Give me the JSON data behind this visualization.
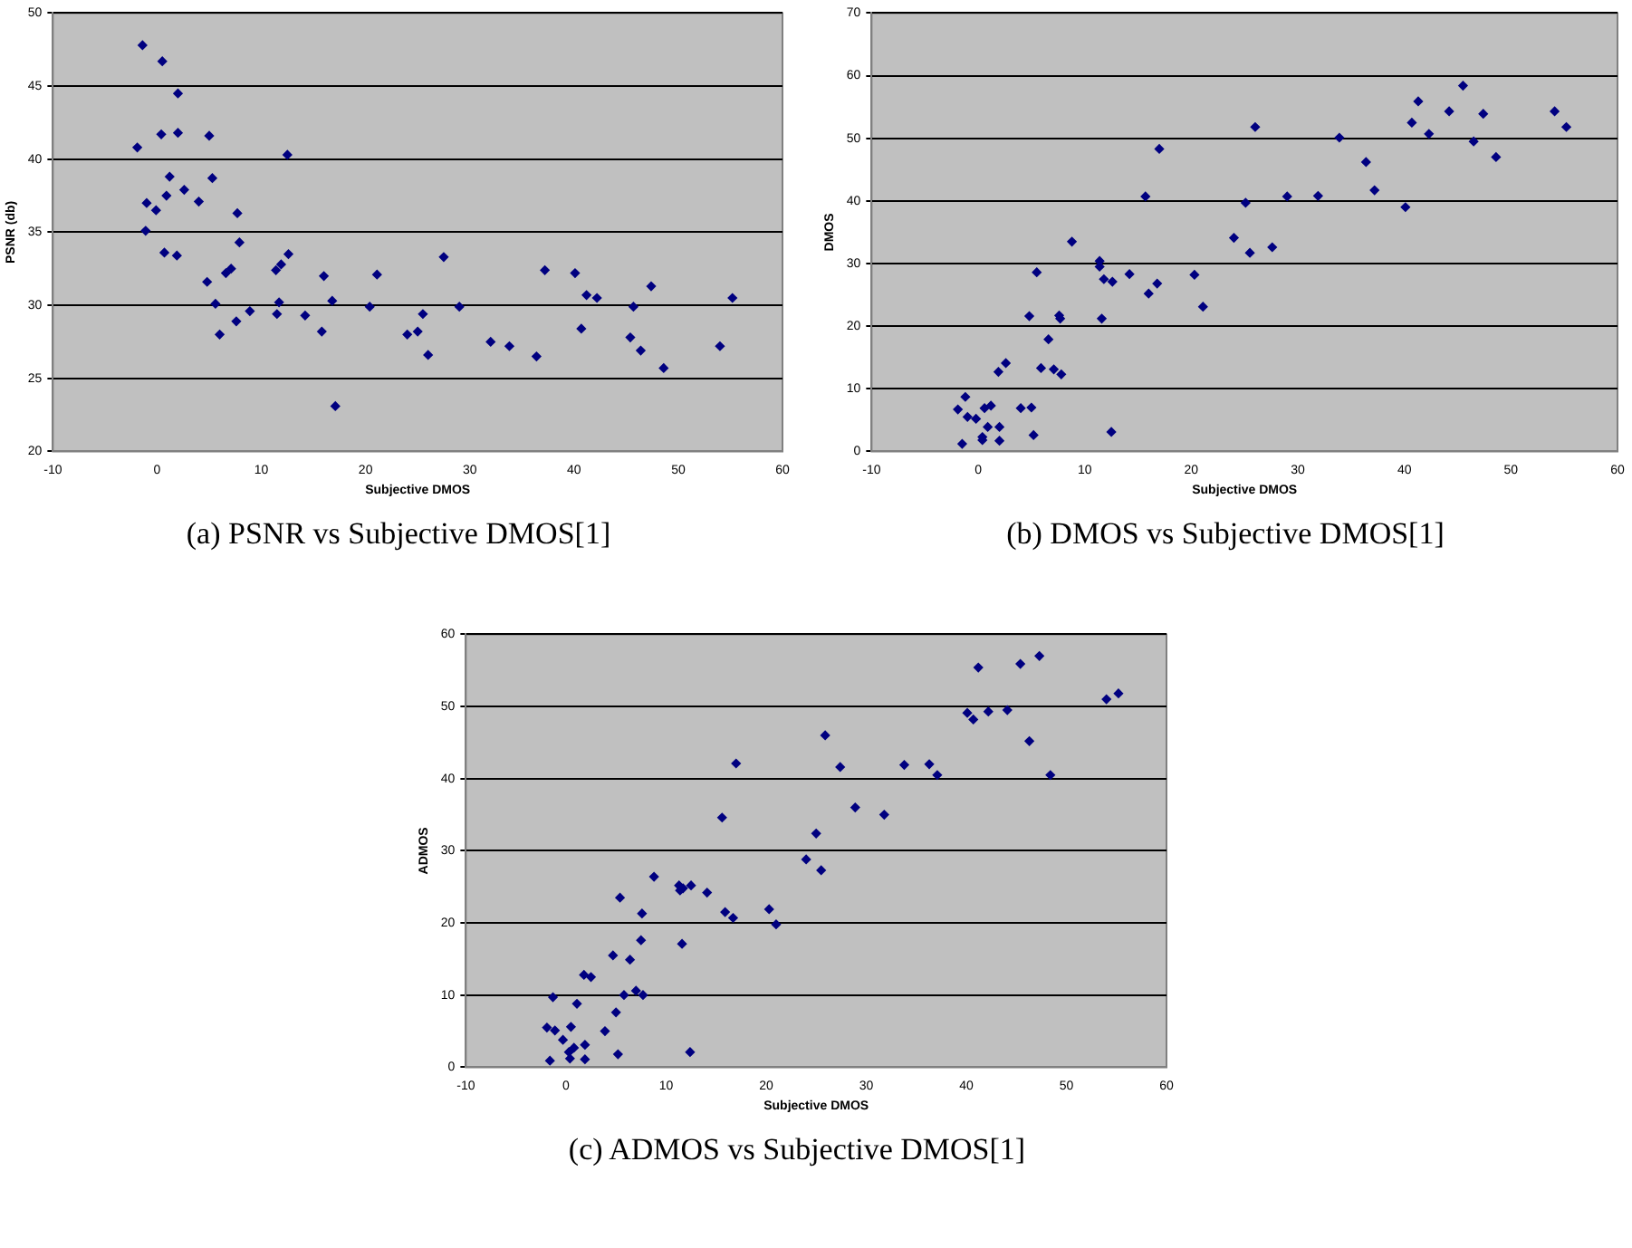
{
  "chart_data": [
    {
      "type": "scatter",
      "title": "(a) PSNR vs Subjective DMOS[1]",
      "xlabel": "Subjective DMOS",
      "ylabel": "PSNR (db)",
      "xlim": [
        -10,
        60
      ],
      "xticks": [
        -10,
        0,
        10,
        20,
        30,
        40,
        50,
        60
      ],
      "ylim": [
        20,
        50
      ],
      "yticks": [
        20,
        25,
        30,
        35,
        40,
        45,
        50
      ],
      "grid": "y",
      "marker": "diamond",
      "color": "#000080",
      "x": [
        -1.4,
        0.5,
        2.0,
        -1.9,
        0.4,
        2.0,
        5.0,
        12.5,
        1.2,
        5.3,
        2.6,
        0.9,
        -1.0,
        -0.1,
        4.0,
        7.7,
        -1.1,
        7.9,
        0.7,
        1.9,
        12.6,
        27.5,
        7.1,
        6.6,
        11.9,
        11.4,
        16.0,
        21.1,
        37.2,
        40.1,
        4.8,
        47.4,
        41.2,
        42.2,
        55.2,
        5.6,
        11.7,
        16.8,
        20.4,
        29.0,
        45.7,
        8.9,
        11.5,
        14.2,
        25.5,
        7.6,
        15.8,
        25.0,
        24.0,
        6.0,
        40.7,
        45.4,
        32.0,
        33.8,
        54.0,
        46.4,
        26.0,
        36.4,
        48.6,
        17.1
      ],
      "values": [
        47.8,
        46.7,
        44.5,
        40.8,
        41.7,
        41.8,
        41.6,
        40.3,
        38.8,
        38.7,
        37.9,
        37.5,
        37.0,
        36.5,
        37.1,
        36.3,
        35.1,
        34.3,
        33.6,
        33.4,
        33.5,
        33.3,
        32.5,
        32.2,
        32.8,
        32.4,
        32.0,
        32.1,
        32.4,
        32.2,
        31.6,
        31.3,
        30.7,
        30.5,
        30.5,
        30.1,
        30.2,
        30.3,
        29.9,
        29.9,
        29.9,
        29.6,
        29.4,
        29.3,
        29.4,
        28.9,
        28.2,
        28.2,
        28.0,
        28.0,
        28.4,
        27.8,
        27.5,
        27.2,
        27.2,
        26.9,
        26.6,
        26.5,
        25.7,
        23.1
      ]
    },
    {
      "type": "scatter",
      "title": "(b) DMOS vs Subjective DMOS[1]",
      "xlabel": "Subjective DMOS",
      "ylabel": "DMOS",
      "xlim": [
        -10,
        60
      ],
      "xticks": [
        -10,
        0,
        10,
        20,
        30,
        40,
        50,
        60
      ],
      "ylim": [
        0,
        70
      ],
      "yticks": [
        0,
        10,
        20,
        30,
        40,
        50,
        60,
        70
      ],
      "grid": "y",
      "marker": "diamond",
      "color": "#000080",
      "x": [
        -1.9,
        -1.2,
        -1.0,
        -0.2,
        -1.5,
        0.6,
        1.2,
        0.9,
        0.4,
        0.4,
        2.0,
        2.0,
        1.9,
        2.6,
        4.0,
        5.0,
        5.2,
        4.8,
        5.5,
        5.9,
        6.6,
        7.1,
        7.6,
        7.7,
        7.8,
        8.8,
        11.4,
        11.4,
        11.8,
        11.6,
        12.6,
        12.5,
        14.2,
        15.7,
        16.0,
        16.8,
        17.0,
        20.3,
        21.1,
        24.0,
        25.1,
        25.5,
        26.0,
        27.6,
        29.0,
        31.9,
        33.9,
        36.4,
        37.2,
        40.1,
        40.7,
        41.3,
        42.3,
        44.2,
        45.5,
        46.5,
        47.4,
        48.6,
        54.1,
        55.2
      ],
      "values": [
        6.7,
        8.7,
        5.5,
        5.2,
        1.2,
        6.9,
        7.3,
        3.9,
        2.3,
        1.8,
        3.9,
        1.7,
        12.7,
        14.1,
        6.9,
        7.0,
        2.6,
        21.6,
        28.6,
        13.3,
        17.9,
        13.1,
        21.7,
        21.2,
        12.3,
        33.5,
        30.4,
        29.5,
        27.5,
        21.2,
        27.1,
        3.1,
        28.3,
        40.7,
        25.2,
        26.8,
        48.3,
        28.2,
        23.1,
        34.1,
        39.7,
        31.7,
        51.8,
        32.6,
        40.7,
        40.8,
        50.1,
        46.2,
        41.7,
        39.0,
        52.5,
        55.9,
        50.7,
        54.3,
        58.4,
        49.5,
        53.9,
        47.0,
        54.3,
        51.8
      ]
    },
    {
      "type": "scatter",
      "title": "(c) ADMOS vs Subjective DMOS[1]",
      "xlabel": "Subjective DMOS",
      "ylabel": "ADMOS",
      "xlim": [
        -10,
        60
      ],
      "xticks": [
        -10,
        0,
        10,
        20,
        30,
        40,
        50,
        60
      ],
      "ylim": [
        0,
        60
      ],
      "yticks": [
        0,
        10,
        20,
        30,
        40,
        50,
        60
      ],
      "grid": "y",
      "marker": "diamond",
      "color": "#000080",
      "x": [
        -1.9,
        -1.1,
        -1.3,
        -1.6,
        -0.3,
        0.5,
        1.1,
        0.8,
        0.3,
        0.4,
        1.9,
        1.9,
        1.8,
        2.5,
        3.9,
        5.0,
        5.2,
        4.7,
        5.4,
        5.8,
        6.4,
        7.0,
        7.5,
        7.6,
        7.7,
        8.8,
        11.3,
        11.4,
        11.7,
        11.6,
        12.5,
        12.4,
        14.1,
        15.6,
        15.9,
        16.7,
        17.0,
        20.3,
        21.0,
        24.0,
        25.0,
        25.5,
        25.9,
        27.4,
        28.9,
        31.8,
        33.8,
        36.3,
        37.1,
        40.1,
        40.7,
        41.2,
        42.2,
        44.1,
        45.4,
        47.3,
        46.3,
        48.4,
        54.0,
        55.2
      ],
      "values": [
        5.5,
        5.1,
        9.7,
        0.9,
        3.8,
        5.6,
        8.8,
        2.7,
        2.1,
        1.2,
        3.1,
        1.1,
        12.8,
        12.5,
        5.0,
        7.6,
        1.8,
        15.5,
        23.5,
        10.0,
        14.9,
        10.6,
        17.6,
        21.3,
        10.0,
        26.4,
        25.2,
        24.5,
        24.8,
        17.1,
        25.2,
        2.1,
        24.2,
        34.6,
        21.5,
        20.7,
        42.1,
        21.9,
        19.8,
        28.8,
        32.4,
        27.3,
        46.0,
        41.6,
        36.0,
        35.0,
        41.9,
        42.0,
        40.5,
        49.1,
        48.2,
        55.4,
        49.3,
        49.5,
        55.9,
        57.0,
        45.2,
        40.5,
        51.0,
        51.8
      ]
    }
  ]
}
